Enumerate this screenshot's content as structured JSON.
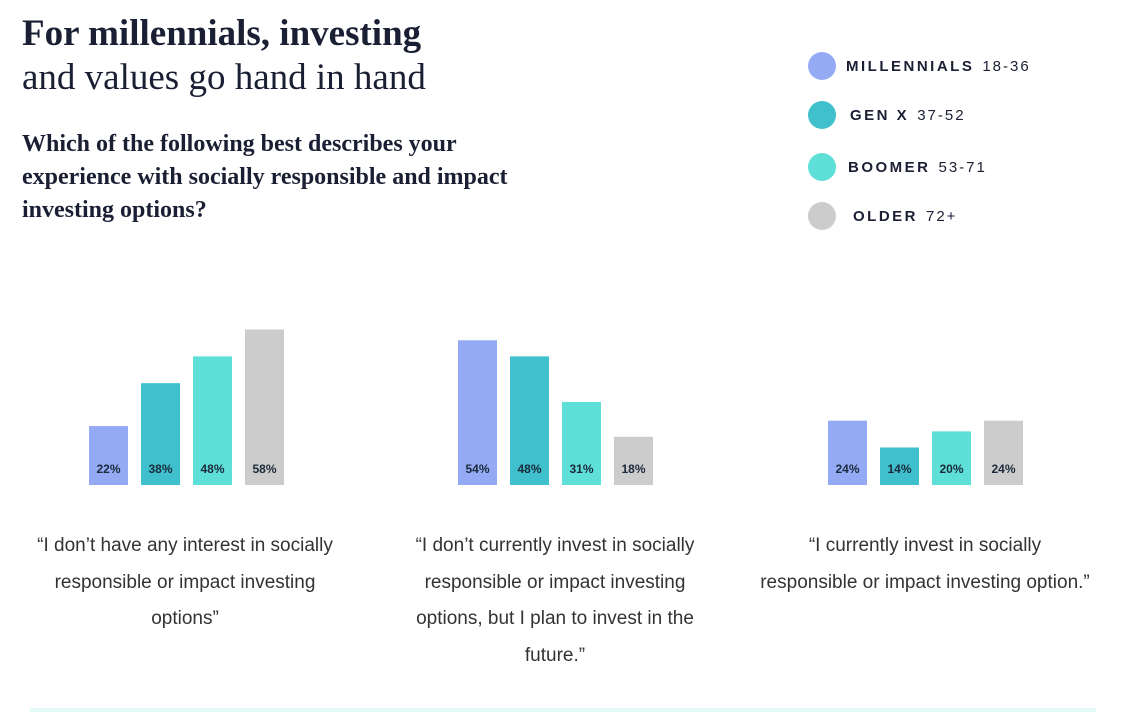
{
  "title": "For millennials, investing",
  "subtitle": "and values go hand in hand",
  "question": "Which of the following best describes your experience with socially responsible and impact investing options?",
  "legend": [
    {
      "name": "MILLENNIALS",
      "range": "18-36",
      "color": "#94aaf5"
    },
    {
      "name": "GEN X",
      "range": "37-52",
      "color": "#3fc0cc"
    },
    {
      "name": "BOOMER",
      "range": "53-71",
      "color": "#5ee0d8"
    },
    {
      "name": "OLDER",
      "range": "72+",
      "color": "#cccccc"
    }
  ],
  "chart_data": [
    {
      "type": "bar",
      "caption": "“I don’t have any interest in socially responsible or impact investing options”",
      "values": [
        22,
        38,
        48,
        58
      ],
      "value_labels": [
        "22%",
        "38%",
        "48%",
        "58%"
      ]
    },
    {
      "type": "bar",
      "caption": "“I don’t currently invest in socially responsible or impact investing options, but I plan to invest in the future.”",
      "values": [
        54,
        48,
        31,
        18
      ],
      "value_labels": [
        "54%",
        "48%",
        "31%",
        "18%"
      ]
    },
    {
      "type": "bar",
      "caption": "“I currently invest in socially responsible or impact investing option.”",
      "values": [
        24,
        14,
        20,
        24
      ],
      "value_labels": [
        "24%",
        "14%",
        "20%",
        "24%"
      ]
    }
  ]
}
